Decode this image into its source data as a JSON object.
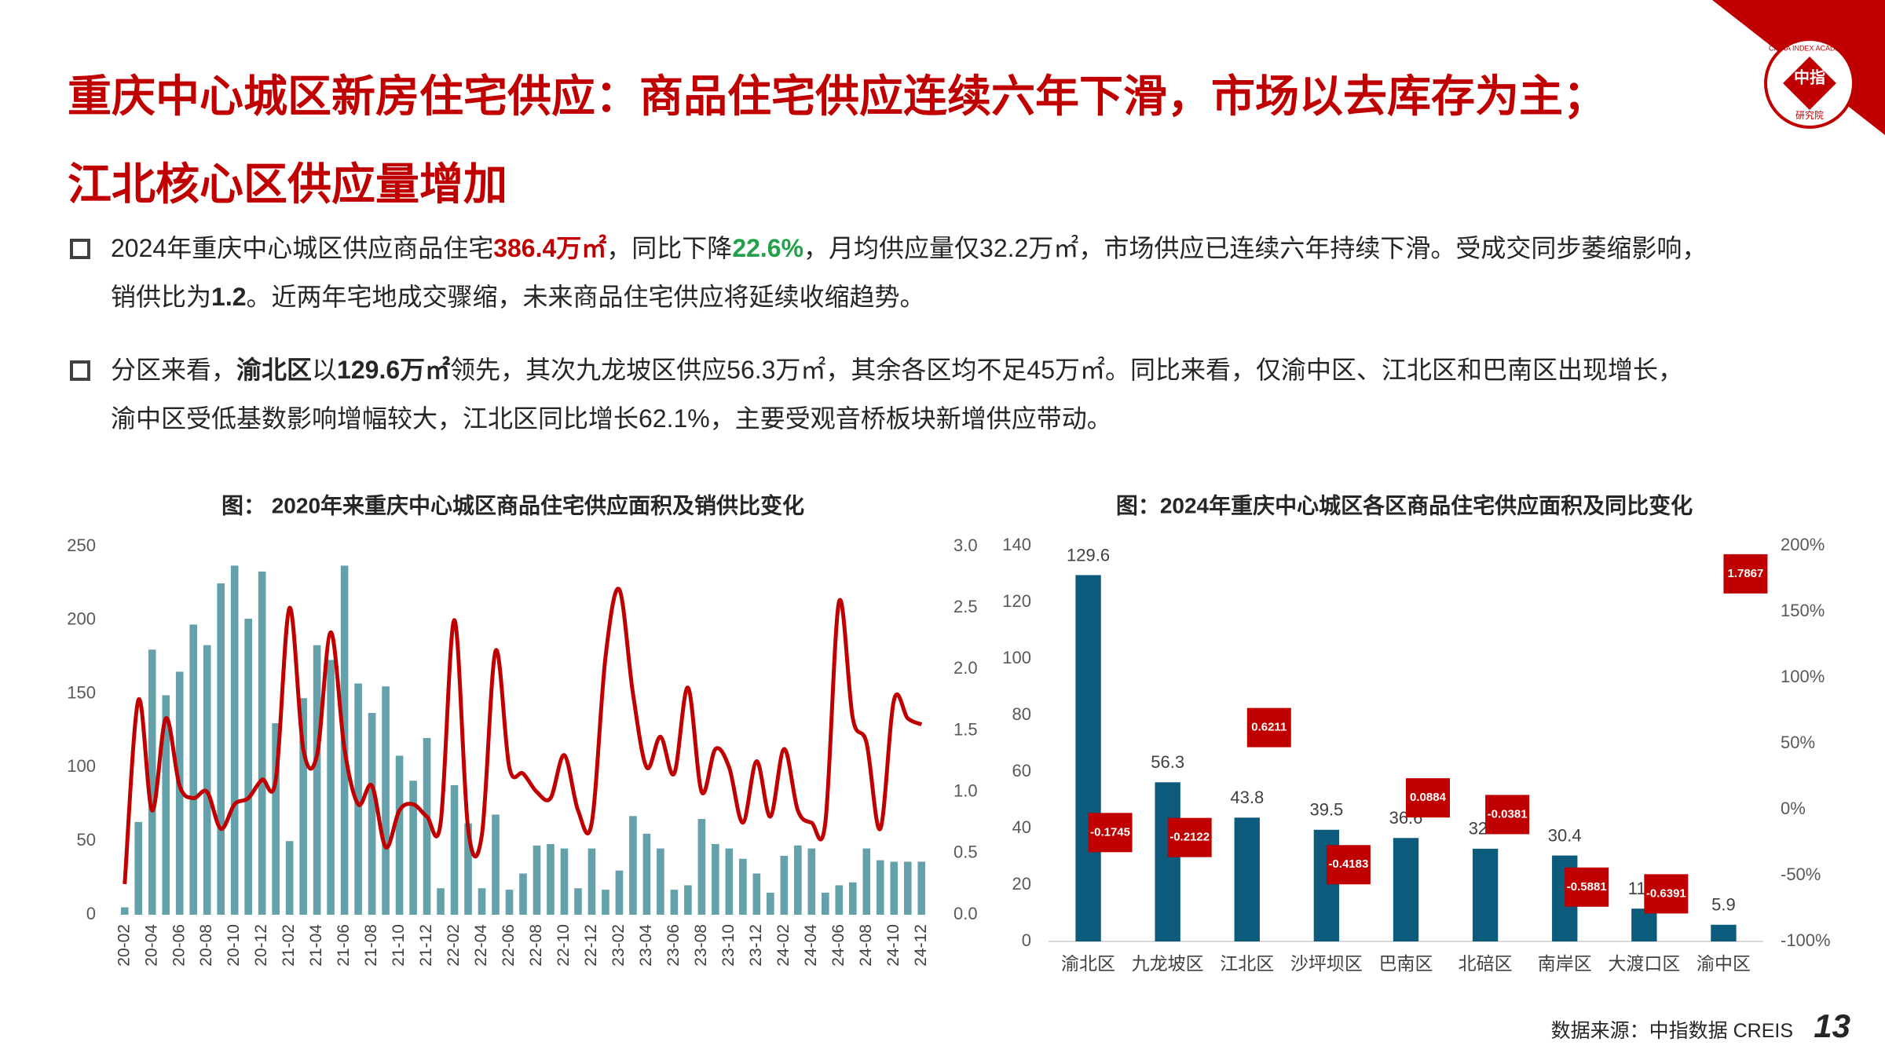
{
  "title": [
    "重庆中心城区新房住宅供应：商品住宅供应连续六年下滑，市场以去库存为主；",
    "江北核心区供应量增加"
  ],
  "logo": {
    "name": "中指",
    "sub": "研究院",
    "en": "CHINA INDEX ACADEMY"
  },
  "bullets": [
    [
      "2024年重庆中心城区供应商品住宅",
      "386.4万㎡",
      "，同比下降",
      "22.6%",
      "，月均供应量仅32.2万㎡，市场供应已连续六年持续下滑。受成交同步萎缩影响，",
      "销供比为",
      "1.2",
      "。近两年宅地成交骤缩，未来商品住宅供应将延续收缩趋势。"
    ],
    [
      "分区来看，",
      "渝北区",
      "以",
      "129.6万㎡",
      "领先，其次九龙坡区供应56.3万㎡，其余各区均不足45万㎡。同比来看，仅渝中区、江北区和巴南区出现增长，",
      "渝中区受低基数影响增幅较大，江北区同比增长62.1%，主要受观音桥板块新增供应带动。"
    ]
  ],
  "source": "数据来源：中指数据 CREIS",
  "page_number": "13",
  "chart_data": [
    {
      "type": "combo",
      "title": "图： 2020年来重庆中心城区商品住宅供应面积及销供比变化",
      "categories": [
        "20-02",
        null,
        "20-04",
        null,
        "20-06",
        null,
        "20-08",
        null,
        "20-10",
        null,
        "20-12",
        null,
        "21-02",
        null,
        "21-04",
        null,
        "21-06",
        null,
        "21-08",
        null,
        "21-10",
        null,
        "21-12",
        null,
        "22-02",
        null,
        "22-04",
        null,
        "22-06",
        null,
        "22-08",
        null,
        "22-10",
        null,
        "22-12",
        null,
        "23-02",
        null,
        "23-04",
        null,
        "23-06",
        null,
        "23-08",
        null,
        "23-10",
        null,
        "23-12",
        null,
        "24-02",
        null,
        "24-04",
        null,
        "24-06",
        null,
        "24-08",
        null,
        "24-10",
        null,
        "24-12"
      ],
      "series": [
        {
          "type": "bar",
          "color": "#65a1aa",
          "values": [
            5,
            63,
            180,
            149,
            165,
            197,
            183,
            225,
            237,
            201,
            233,
            130,
            50,
            147,
            183,
            173,
            237,
            157,
            137,
            155,
            108,
            91,
            120,
            18,
            88,
            62,
            18,
            68,
            17,
            28,
            47,
            48,
            45,
            18,
            45,
            17,
            30,
            67,
            55,
            45,
            17,
            20,
            65,
            48,
            45,
            38,
            28,
            15,
            40,
            47,
            45,
            15,
            20,
            22,
            45,
            37,
            36,
            36,
            36
          ]
        },
        {
          "type": "line",
          "axis": "y2",
          "color": "#c00000",
          "values": [
            0.25,
            1.75,
            0.85,
            1.6,
            1.05,
            0.95,
            1.0,
            0.7,
            0.9,
            0.95,
            1.1,
            1.1,
            2.5,
            1.35,
            1.3,
            2.3,
            1.35,
            0.9,
            1.05,
            0.55,
            0.85,
            0.9,
            0.8,
            0.75,
            2.4,
            0.7,
            0.65,
            2.15,
            1.2,
            1.15,
            1.0,
            0.95,
            1.3,
            0.85,
            0.75,
            2.1,
            2.65,
            1.8,
            1.2,
            1.45,
            1.15,
            1.85,
            1.0,
            1.35,
            1.2,
            0.75,
            1.25,
            0.8,
            1.35,
            0.85,
            0.75,
            0.75,
            2.55,
            1.6,
            1.4,
            0.7,
            1.75,
            1.6,
            1.55
          ]
        }
      ],
      "ylim": [
        0,
        250
      ],
      "yticks": [
        0,
        50,
        100,
        150,
        200,
        250
      ],
      "y2lim": [
        0,
        3
      ],
      "y2ticks": [
        {
          "value": 0,
          "label": "0.0"
        },
        0.5,
        {
          "value": 1,
          "label": "1.0"
        },
        1.5,
        {
          "value": 2,
          "label": "2.0"
        },
        2.5,
        {
          "value": 3,
          "label": "3.0"
        }
      ],
      "x_label_rotation": -90
    },
    {
      "type": "combo",
      "title": "图：2024年重庆中心城区各区商品住宅供应面积及同比变化",
      "categories": [
        "渝北区",
        "九龙坡区",
        "江北区",
        "沙坪坝区",
        "巴南区",
        "北碚区",
        "南岸区",
        "大渡口区",
        "渝中区"
      ],
      "series": [
        {
          "type": "bar",
          "color": "#0c5a7c",
          "data_labels": true,
          "values": [
            129.6,
            56.3,
            43.8,
            39.5,
            36.6,
            32.8,
            30.4,
            11.6,
            5.9
          ]
        },
        {
          "type": "marker",
          "axis": "y2",
          "color": "#c00000",
          "values": [
            -17.45,
            -21.22,
            62.11,
            -41.83,
            8.84,
            -3.81,
            -58.81,
            -63.91,
            178.67
          ],
          "value_labels": [
            "-0.1745",
            "-0.2122",
            "0.6211",
            "-0.4183",
            "0.0884",
            "-0.0381",
            "-0.5881",
            "-0.6391",
            "1.7867"
          ]
        }
      ],
      "ylim": [
        0,
        140
      ],
      "yticks": [
        0,
        20,
        40,
        60,
        80,
        100,
        120,
        140
      ],
      "y2lim": [
        -100,
        200
      ],
      "y2ticks": [
        {
          "value": -100,
          "label": "-100%"
        },
        {
          "value": -50,
          "label": "-50%"
        },
        {
          "value": 0,
          "label": "0%"
        },
        {
          "value": 50,
          "label": "50%"
        },
        {
          "value": 100,
          "label": "100%"
        },
        {
          "value": 150,
          "label": "150%"
        },
        {
          "value": 200,
          "label": "200%"
        }
      ]
    }
  ]
}
